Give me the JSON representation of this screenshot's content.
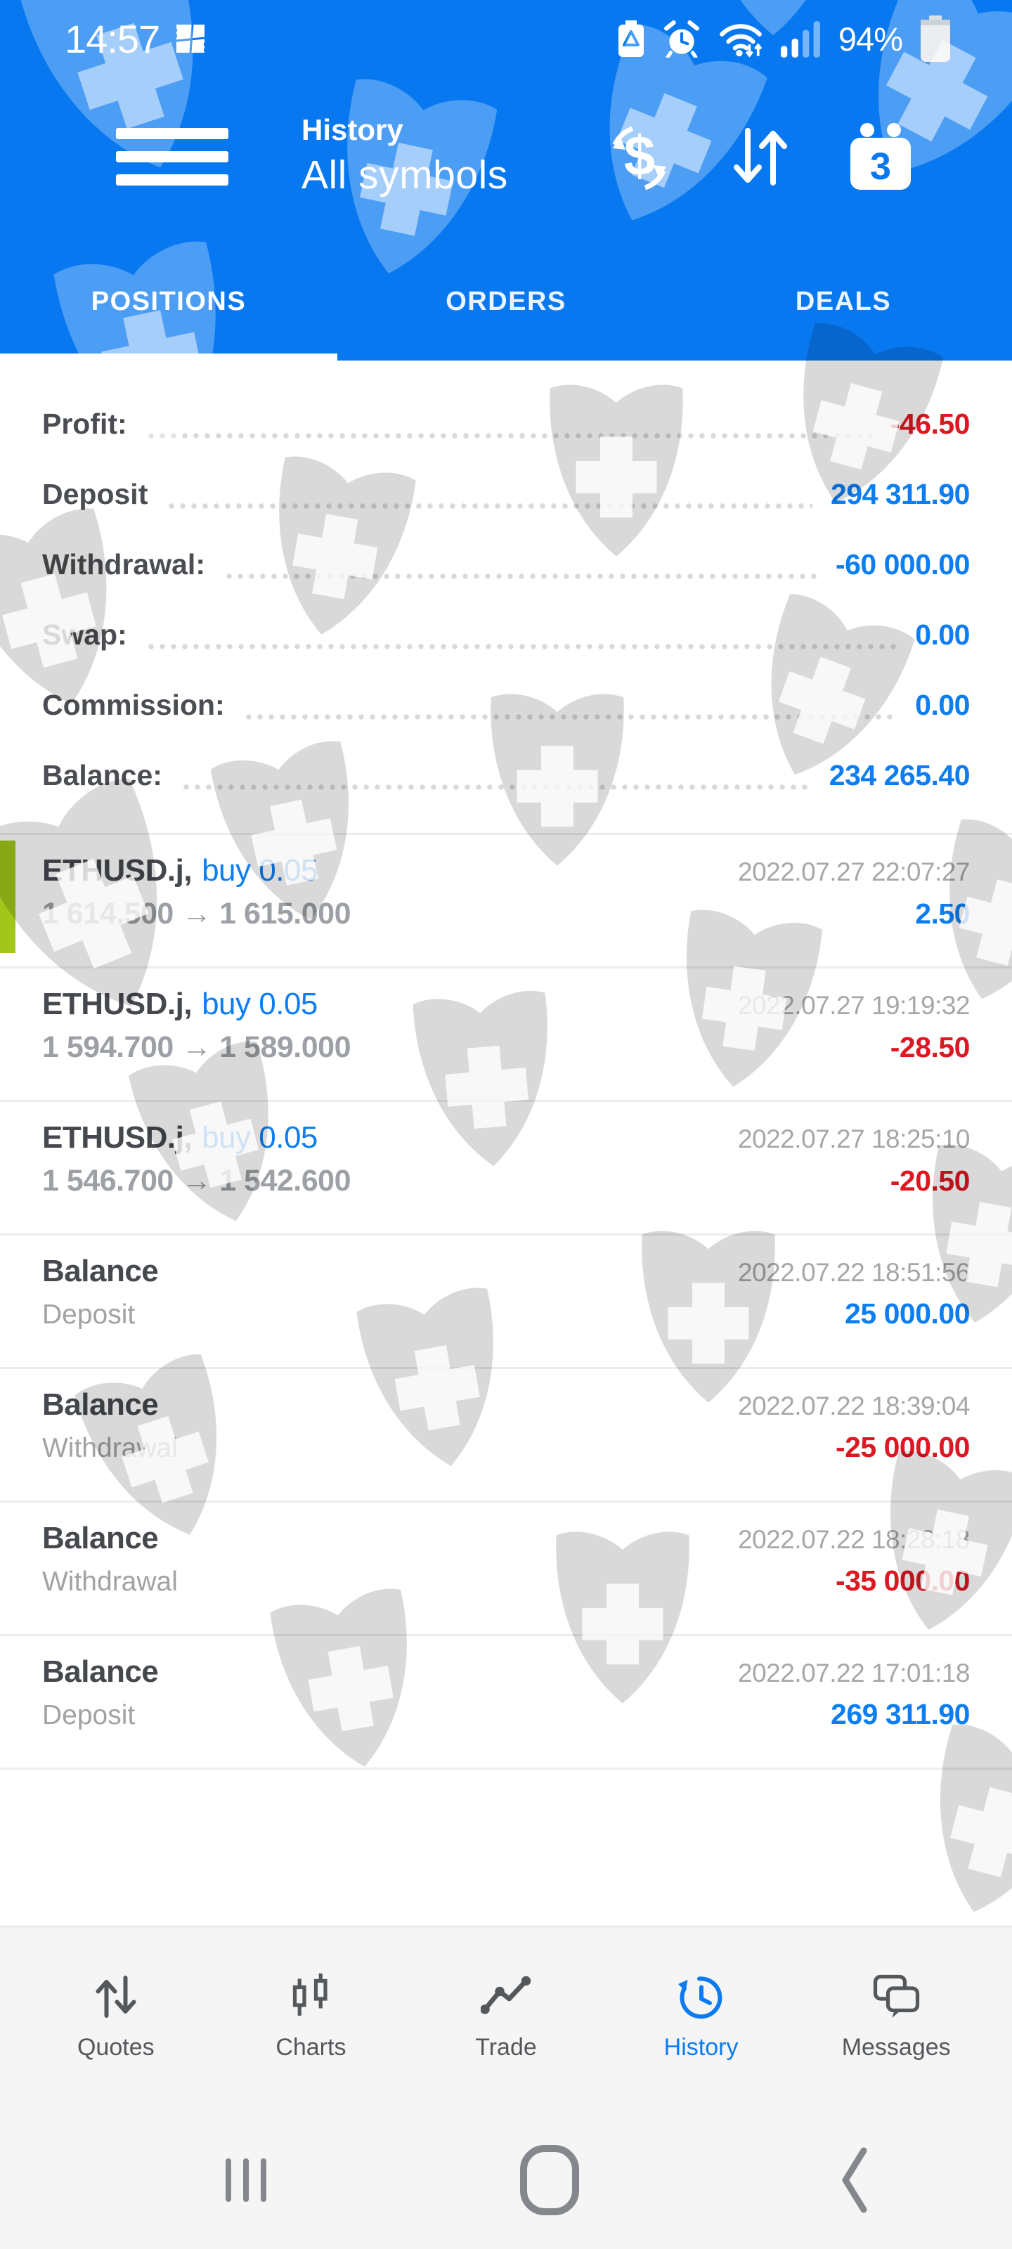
{
  "status_bar": {
    "time": "14:57",
    "battery_percent": "94%",
    "icons": [
      "app-notification-icon",
      "battery-saver-icon",
      "alarm-icon",
      "wifi-icon",
      "signal-icon",
      "battery-icon"
    ]
  },
  "header": {
    "title": "History",
    "subtitle": "All symbols",
    "calendar_badge": "3",
    "icons": [
      "menu-icon",
      "currency-exchange-icon",
      "sort-arrows-icon",
      "calendar-icon"
    ]
  },
  "tabs": [
    {
      "label": "POSITIONS",
      "active": true
    },
    {
      "label": "ORDERS",
      "active": false
    },
    {
      "label": "DEALS",
      "active": false
    }
  ],
  "summary": [
    {
      "label": "Profit:",
      "value": "-46.50",
      "color": "red"
    },
    {
      "label": "Deposit",
      "value": "294 311.90",
      "color": "blue"
    },
    {
      "label": "Withdrawal:",
      "value": "-60 000.00",
      "color": "blue"
    },
    {
      "label": "Swap:",
      "value": "0.00",
      "color": "blue"
    },
    {
      "label": "Commission:",
      "value": "0.00",
      "color": "blue"
    },
    {
      "label": "Balance:",
      "value": "234 265.40",
      "color": "blue"
    }
  ],
  "deals": [
    {
      "kind": "trade",
      "symbol": "ETHUSD.j,",
      "type": "buy 0.05",
      "datetime": "2022.07.27 22:07:27",
      "detail": "1 614.500 → 1 615.000",
      "profit": "2.50",
      "profit_color": "blue",
      "marker": true
    },
    {
      "kind": "trade",
      "symbol": "ETHUSD.j,",
      "type": "buy 0.05",
      "datetime": "2022.07.27 19:19:32",
      "detail": "1 594.700 → 1 589.000",
      "profit": "-28.50",
      "profit_color": "red",
      "marker": false
    },
    {
      "kind": "trade",
      "symbol": "ETHUSD.j,",
      "type": "buy 0.05",
      "datetime": "2022.07.27 18:25:10",
      "detail": "1 546.700 → 1 542.600",
      "profit": "-20.50",
      "profit_color": "red",
      "marker": false
    },
    {
      "kind": "balance",
      "symbol": "Balance",
      "type": "",
      "datetime": "2022.07.22 18:51:56",
      "detail": "Deposit",
      "profit": "25 000.00",
      "profit_color": "blue",
      "marker": false
    },
    {
      "kind": "balance",
      "symbol": "Balance",
      "type": "",
      "datetime": "2022.07.22 18:39:04",
      "detail": "Withdrawal",
      "profit": "-25 000.00",
      "profit_color": "red",
      "marker": false
    },
    {
      "kind": "balance",
      "symbol": "Balance",
      "type": "",
      "datetime": "2022.07.22 18:28:18",
      "detail": "Withdrawal",
      "profit": "-35 000.00",
      "profit_color": "red",
      "marker": false
    },
    {
      "kind": "balance",
      "symbol": "Balance",
      "type": "",
      "datetime": "2022.07.22 17:01:18",
      "detail": "Deposit",
      "profit": "269 311.90",
      "profit_color": "blue",
      "marker": false
    }
  ],
  "bottom_nav": [
    {
      "label": "Quotes",
      "icon": "quotes-icon",
      "active": false
    },
    {
      "label": "Charts",
      "icon": "charts-icon",
      "active": false
    },
    {
      "label": "Trade",
      "icon": "trade-icon",
      "active": false
    },
    {
      "label": "History",
      "icon": "history-icon",
      "active": true
    },
    {
      "label": "Messages",
      "icon": "messages-icon",
      "active": false
    }
  ],
  "android_nav": [
    "recents-icon",
    "home-icon",
    "back-icon"
  ],
  "colors": {
    "accent_blue": "#0878f0",
    "value_blue": "#0d7ef2",
    "negative_red": "#de1822",
    "marker_green": "#a2c61b",
    "watermark": "shield-plus"
  }
}
